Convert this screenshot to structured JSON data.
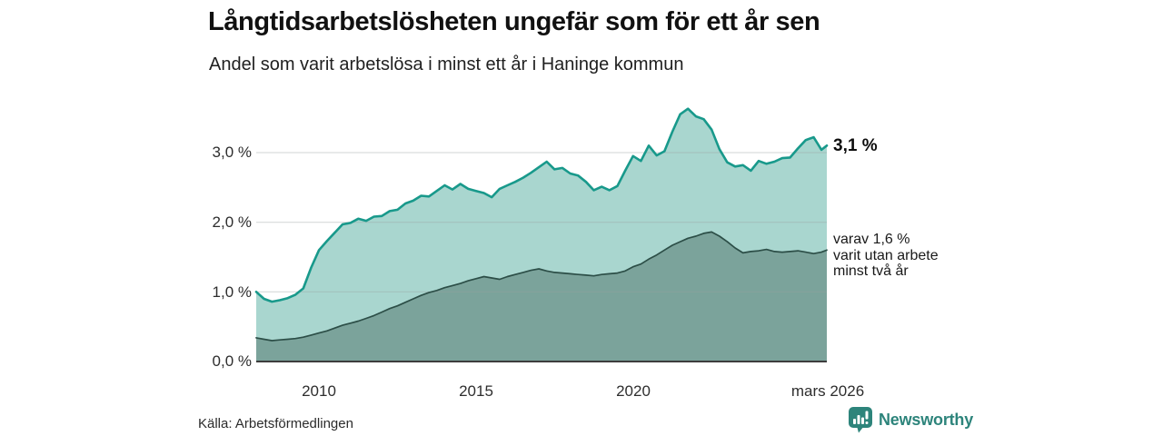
{
  "chart_data": {
    "type": "area",
    "title": "Långtidsarbetslösheten ungefär som för ett år sen",
    "subtitle": "Andel som varit arbetslösa i minst ett år i Haninge kommun",
    "x_range_years": [
      2008,
      2026.17
    ],
    "ylim": [
      0,
      3.7
    ],
    "grid": true,
    "legend_position": "right-edge-annotations",
    "x_years": [
      2008,
      2008.25,
      2008.5,
      2008.75,
      2009,
      2009.25,
      2009.5,
      2009.75,
      2010,
      2010.25,
      2010.5,
      2010.75,
      2011,
      2011.25,
      2011.5,
      2011.75,
      2012,
      2012.25,
      2012.5,
      2012.75,
      2013,
      2013.25,
      2013.5,
      2013.75,
      2014,
      2014.25,
      2014.5,
      2014.75,
      2015,
      2015.25,
      2015.5,
      2015.75,
      2016,
      2016.25,
      2016.5,
      2016.75,
      2017,
      2017.25,
      2017.5,
      2017.75,
      2018,
      2018.25,
      2018.5,
      2018.75,
      2019,
      2019.25,
      2019.5,
      2019.75,
      2020,
      2020.25,
      2020.5,
      2020.75,
      2021,
      2021.25,
      2021.5,
      2021.75,
      2022,
      2022.25,
      2022.5,
      2022.75,
      2023,
      2023.25,
      2023.5,
      2023.75,
      2024,
      2024.25,
      2024.5,
      2024.75,
      2025,
      2025.25,
      2025.5,
      2025.75,
      2026,
      2026.17
    ],
    "series": [
      {
        "name": "Andel som varit arbetslösa i minst ett år",
        "line_color": "#18998b",
        "fill_color": "#a9d6cf",
        "end_label": "3,1 %",
        "values": [
          1.0,
          0.9,
          0.86,
          0.88,
          0.91,
          0.96,
          1.05,
          1.35,
          1.6,
          1.73,
          1.85,
          1.97,
          1.99,
          2.05,
          2.02,
          2.08,
          2.09,
          2.16,
          2.18,
          2.27,
          2.31,
          2.38,
          2.37,
          2.45,
          2.53,
          2.47,
          2.55,
          2.48,
          2.45,
          2.42,
          2.36,
          2.48,
          2.53,
          2.58,
          2.64,
          2.71,
          2.79,
          2.87,
          2.76,
          2.78,
          2.7,
          2.67,
          2.58,
          2.46,
          2.51,
          2.46,
          2.52,
          2.74,
          2.95,
          2.88,
          3.1,
          2.96,
          3.02,
          3.3,
          3.55,
          3.63,
          3.52,
          3.48,
          3.33,
          3.05,
          2.86,
          2.8,
          2.82,
          2.74,
          2.88,
          2.84,
          2.87,
          2.92,
          2.93,
          3.06,
          3.18,
          3.22,
          3.04,
          3.1
        ]
      },
      {
        "name": "varav varit utan arbete minst två år",
        "line_color": "#2c4e47",
        "fill_color": "#7ba39b",
        "end_label": "varav 1,6 % varit utan arbete minst två år",
        "values": [
          0.34,
          0.32,
          0.3,
          0.31,
          0.32,
          0.33,
          0.35,
          0.38,
          0.41,
          0.44,
          0.48,
          0.52,
          0.55,
          0.58,
          0.62,
          0.66,
          0.71,
          0.76,
          0.8,
          0.85,
          0.9,
          0.95,
          0.99,
          1.02,
          1.06,
          1.09,
          1.12,
          1.16,
          1.19,
          1.22,
          1.2,
          1.18,
          1.22,
          1.25,
          1.28,
          1.31,
          1.33,
          1.3,
          1.28,
          1.27,
          1.26,
          1.25,
          1.24,
          1.23,
          1.25,
          1.26,
          1.27,
          1.3,
          1.36,
          1.4,
          1.47,
          1.53,
          1.6,
          1.67,
          1.72,
          1.77,
          1.8,
          1.84,
          1.86,
          1.8,
          1.72,
          1.63,
          1.56,
          1.58,
          1.59,
          1.61,
          1.58,
          1.57,
          1.58,
          1.59,
          1.57,
          1.55,
          1.57,
          1.6
        ]
      }
    ],
    "yticks": [
      {
        "value": 0,
        "label": "0,0 %"
      },
      {
        "value": 1,
        "label": "1,0 %"
      },
      {
        "value": 2,
        "label": "2,0 %"
      },
      {
        "value": 3,
        "label": "3,0 %"
      }
    ],
    "xticks": [
      {
        "year": 2010,
        "label": "2010"
      },
      {
        "year": 2015,
        "label": "2015"
      },
      {
        "year": 2020,
        "label": "2020"
      },
      {
        "year": 2026.17,
        "label": "mars 2026"
      }
    ]
  },
  "annotations": {
    "latest_total": "3,1 %",
    "latest_two_year_lines": [
      "varav 1,6 %",
      "varit utan arbete",
      "minst två år"
    ]
  },
  "footer": {
    "source": "Källa: Arbetsförmedlingen",
    "brand_name": "Newsworthy"
  },
  "colors": {
    "series1_line": "#18998b",
    "series1_fill": "#a9d6cf",
    "series2_line": "#2c4e47",
    "series2_fill": "#7ba39b",
    "grid": "#9aa0a0",
    "axis": "#3d3d3d",
    "brand": "#2d847b",
    "text": "#111111"
  }
}
